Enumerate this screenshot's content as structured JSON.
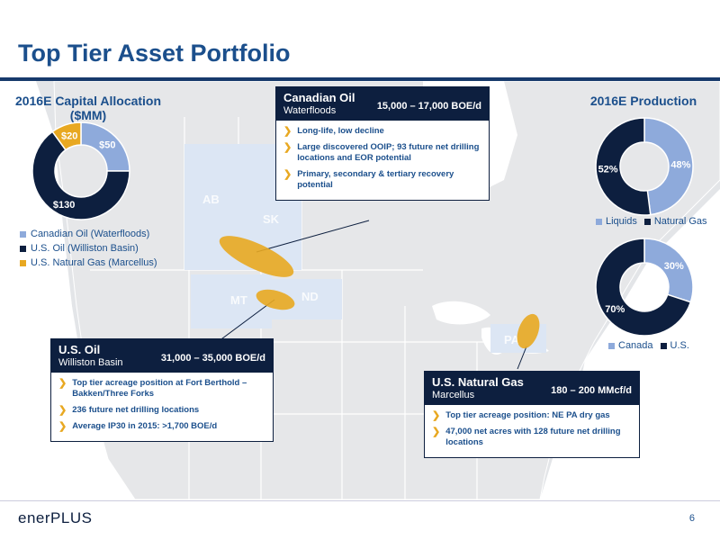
{
  "title": "Top Tier Asset Portfolio",
  "capital": {
    "title_line1": "2016E Capital Allocation",
    "title_line2": "($MM)",
    "legend": [
      "Canadian Oil (Waterfloods)",
      "U.S. Oil (Williston Basin)",
      "U.S. Natural Gas (Marcellus)"
    ]
  },
  "production": {
    "title": "2016E Production",
    "legend1": [
      "Liquids",
      "Natural Gas"
    ],
    "legend2": [
      "Canada",
      "U.S."
    ]
  },
  "states": [
    "AB",
    "SK",
    "MT",
    "ND",
    "PA"
  ],
  "boxes": {
    "canada": {
      "title": "Canadian Oil",
      "subtitle": "Waterfloods",
      "rate": "15,000 – 17,000 BOE/d",
      "bullets": [
        "Long-life, low decline",
        "Large discovered OOIP; 93 future net drilling locations and EOR potential",
        "Primary, secondary & tertiary recovery potential"
      ]
    },
    "usoil": {
      "title": "U.S. Oil",
      "subtitle": "Williston Basin",
      "rate": "31,000 – 35,000 BOE/d",
      "bullets": [
        "Top tier acreage position at Fort Berthold – Bakken/Three Forks",
        "236 future net drilling locations",
        "Average IP30 in 2015: >1,700 BOE/d"
      ]
    },
    "usgas": {
      "title": "U.S. Natural Gas",
      "subtitle": "Marcellus",
      "rate": "180 – 200 MMcf/d",
      "bullets": [
        "Top tier acreage position: NE PA dry gas",
        "47,000 net acres with 128 future net drilling locations"
      ]
    }
  },
  "logo": "enerPLUS",
  "page_number": "6",
  "colors": {
    "light_blue": "#8eaadb",
    "navy": "#0d1f3f",
    "gold": "#e8a821",
    "title_blue": "#1b4f8c"
  },
  "chart_data": [
    {
      "type": "pie",
      "title": "2016E Capital Allocation ($MM)",
      "categories": [
        "Canadian Oil (Waterfloods)",
        "U.S. Oil (Williston Basin)",
        "U.S. Natural Gas (Marcellus)"
      ],
      "values": [
        50,
        130,
        20
      ],
      "labels": [
        "$50",
        "$130",
        "$20"
      ],
      "colors": [
        "#8eaadb",
        "#0d1f3f",
        "#e8a821"
      ]
    },
    {
      "type": "pie",
      "title": "2016E Production",
      "categories": [
        "Liquids",
        "Natural Gas"
      ],
      "values": [
        48,
        52
      ],
      "labels": [
        "48%",
        "52%"
      ],
      "colors": [
        "#8eaadb",
        "#0d1f3f"
      ]
    },
    {
      "type": "pie",
      "title": "",
      "categories": [
        "Canada",
        "U.S."
      ],
      "values": [
        30,
        70
      ],
      "labels": [
        "30%",
        "70%"
      ],
      "colors": [
        "#8eaadb",
        "#0d1f3f"
      ]
    }
  ]
}
